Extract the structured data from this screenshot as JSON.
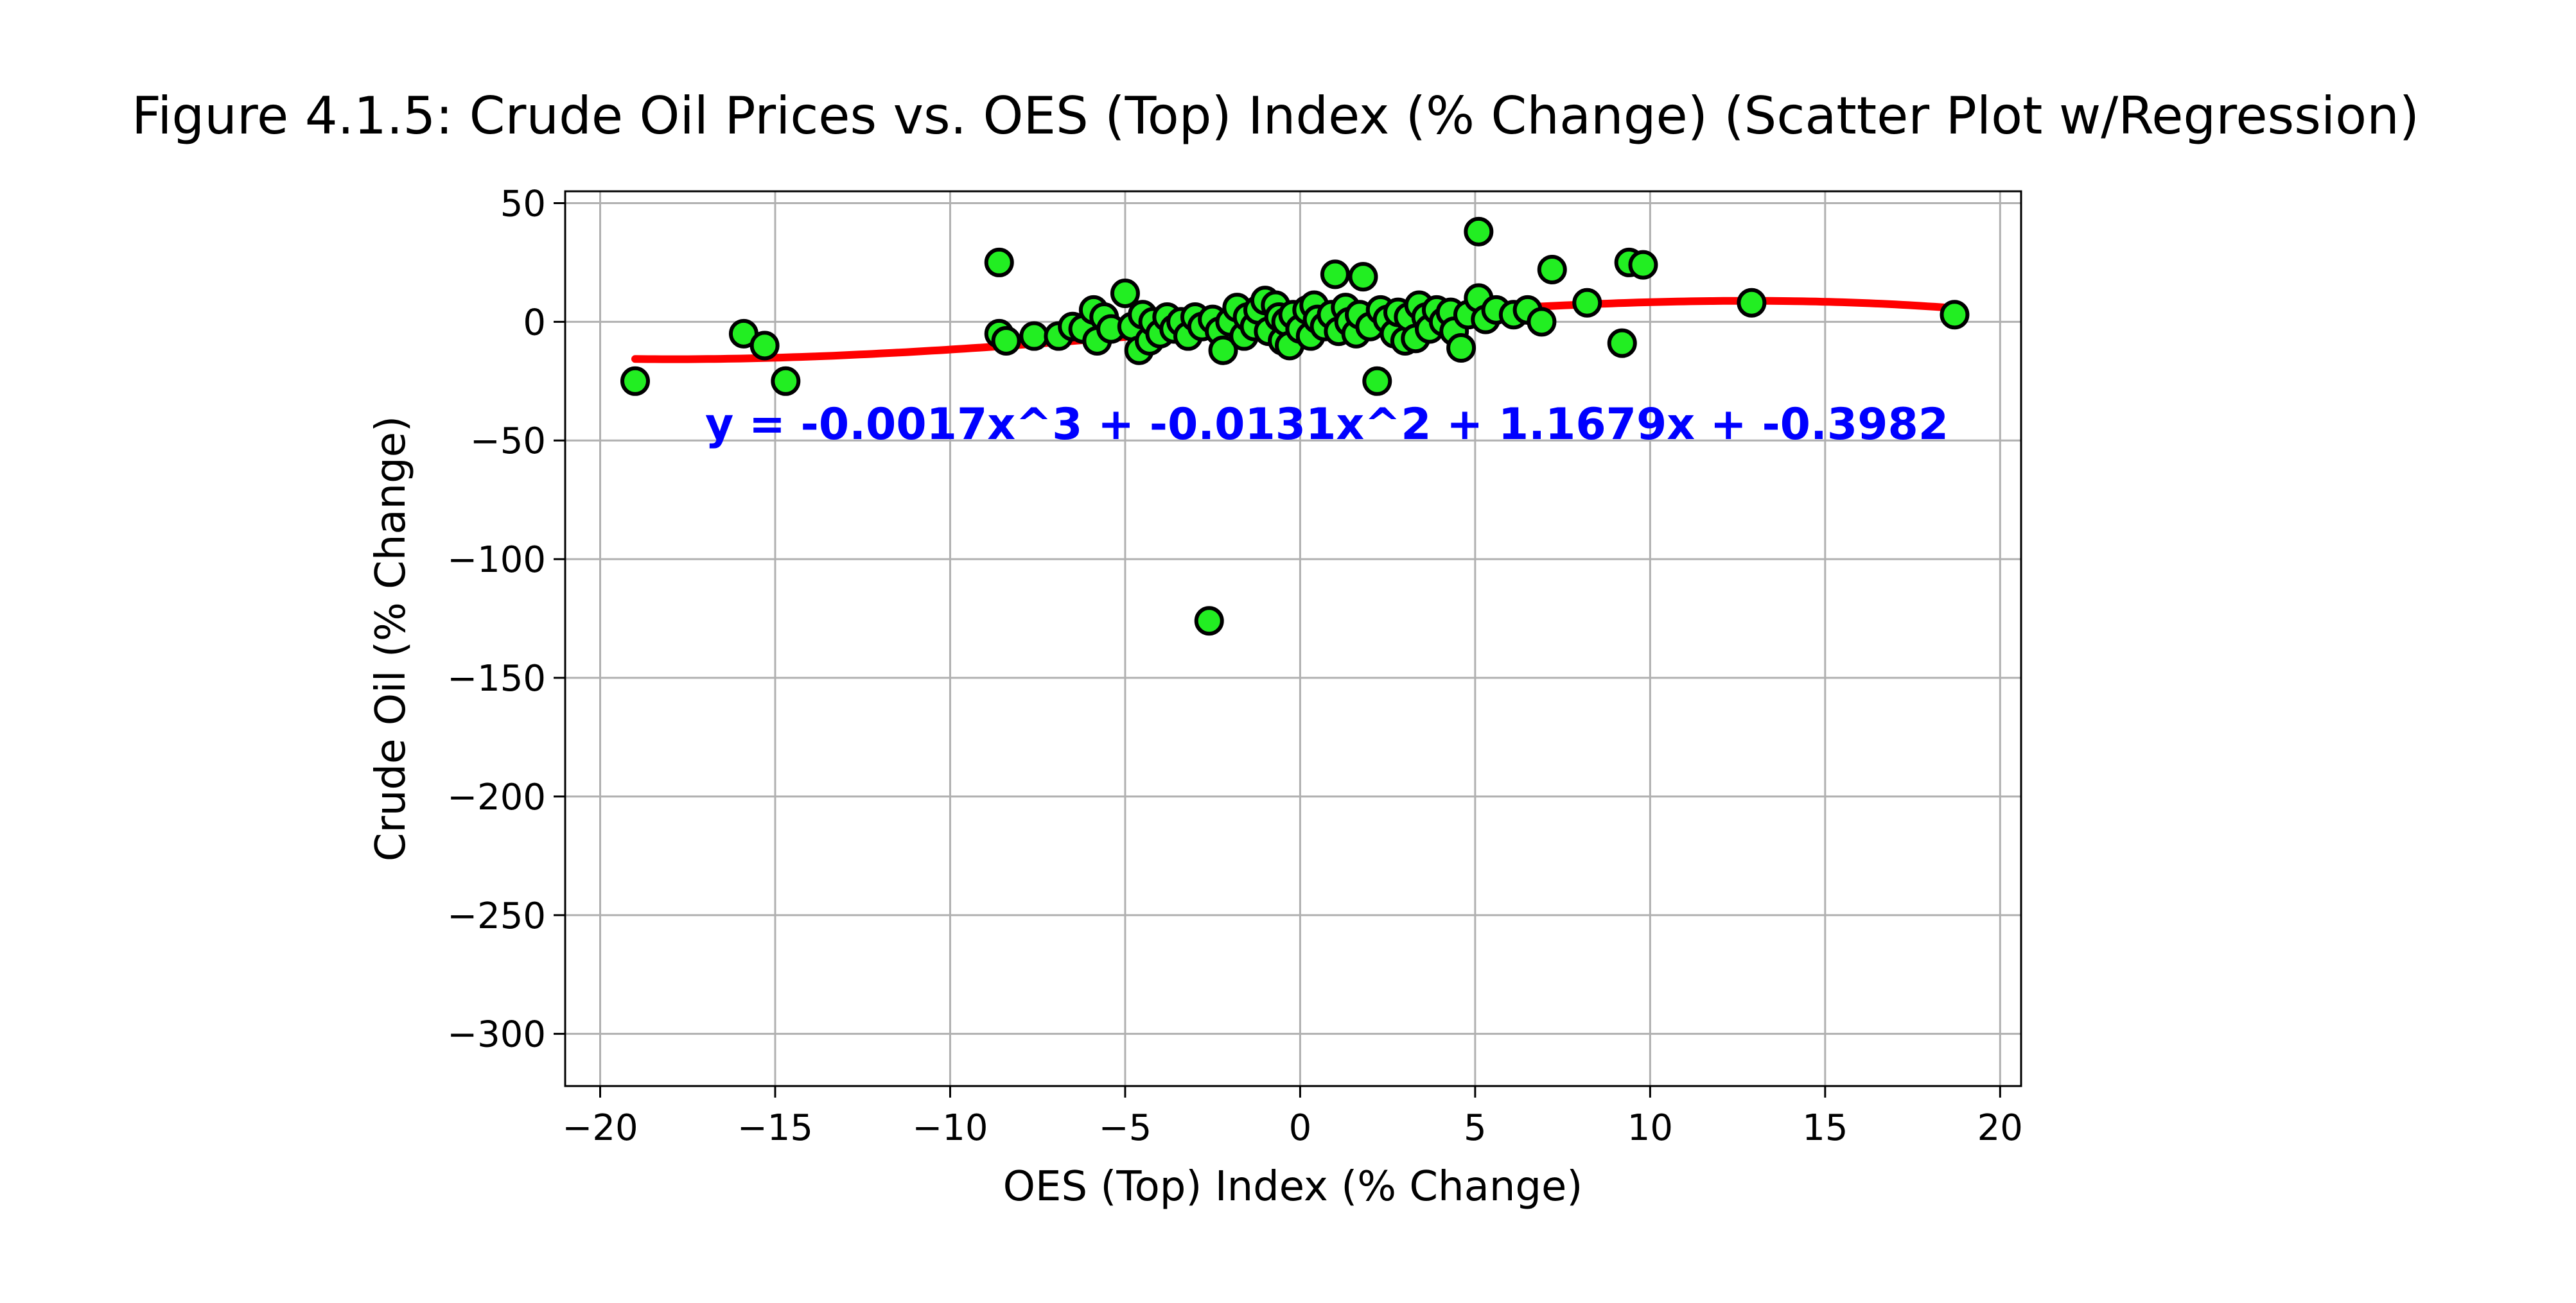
{
  "chart_data": {
    "type": "scatter",
    "title": "Figure 4.1.5: Crude Oil Prices vs. OES (Top) Index (% Change) (Scatter Plot w/Regression)",
    "xlabel": "OES (Top) Index (% Change)",
    "ylabel": "Crude Oil (% Change)",
    "xlim": [
      -21,
      20.6
    ],
    "ylim": [
      -322,
      55
    ],
    "xticks": [
      -20,
      -15,
      -10,
      -5,
      0,
      5,
      10,
      15,
      20
    ],
    "xtick_labels": [
      "−20",
      "−15",
      "−10",
      "−5",
      "0",
      "5",
      "10",
      "15",
      "20"
    ],
    "yticks": [
      50,
      0,
      -50,
      -100,
      -150,
      -200,
      -250,
      -300
    ],
    "ytick_labels": [
      "50",
      "0",
      "−50",
      "−100",
      "−150",
      "−200",
      "−250",
      "−300"
    ],
    "grid": true,
    "colors": {
      "points": "#22ee22",
      "point_edge": "#000000",
      "regression": "#ff0000",
      "equation": "#0000ff"
    },
    "regression": {
      "equation": "y = -0.0017x^3 + -0.0131x^2 + 1.1679x + -0.3982",
      "coefficients": [
        -0.0017,
        -0.0131,
        1.1679,
        -0.3982
      ],
      "x_range": [
        -19,
        18.7
      ]
    },
    "points": [
      [
        -19.0,
        -25
      ],
      [
        -15.9,
        -5
      ],
      [
        -15.3,
        -10
      ],
      [
        -14.7,
        -25
      ],
      [
        -8.6,
        25
      ],
      [
        -8.6,
        -5
      ],
      [
        -8.4,
        -8
      ],
      [
        -7.6,
        -6
      ],
      [
        -6.9,
        -6
      ],
      [
        -6.5,
        -2
      ],
      [
        -6.2,
        -3
      ],
      [
        -5.9,
        5
      ],
      [
        -5.8,
        -8
      ],
      [
        -5.6,
        2
      ],
      [
        -5.4,
        -3
      ],
      [
        -5.0,
        12
      ],
      [
        -4.8,
        -2
      ],
      [
        -4.6,
        -12
      ],
      [
        -4.5,
        3
      ],
      [
        -4.3,
        -8
      ],
      [
        -4.2,
        0
      ],
      [
        -4.0,
        -5
      ],
      [
        -3.8,
        2
      ],
      [
        -3.6,
        -3
      ],
      [
        -3.4,
        0
      ],
      [
        -3.2,
        -6
      ],
      [
        -3.0,
        2
      ],
      [
        -2.8,
        -2
      ],
      [
        -2.6,
        -126
      ],
      [
        -2.5,
        1
      ],
      [
        -2.3,
        -4
      ],
      [
        -2.2,
        -12
      ],
      [
        -2.0,
        0
      ],
      [
        -1.8,
        6
      ],
      [
        -1.6,
        -6
      ],
      [
        -1.5,
        2
      ],
      [
        -1.3,
        -2
      ],
      [
        -1.2,
        5
      ],
      [
        -1.0,
        9
      ],
      [
        -0.9,
        -4
      ],
      [
        -0.7,
        7
      ],
      [
        -0.6,
        2
      ],
      [
        -0.5,
        -8
      ],
      [
        -0.4,
        0
      ],
      [
        -0.3,
        -10
      ],
      [
        -0.2,
        3
      ],
      [
        0.0,
        -3
      ],
      [
        0.2,
        5
      ],
      [
        0.3,
        -6
      ],
      [
        0.4,
        7
      ],
      [
        0.5,
        1
      ],
      [
        0.7,
        -2
      ],
      [
        0.9,
        3
      ],
      [
        1.0,
        20
      ],
      [
        1.1,
        -4
      ],
      [
        1.3,
        6
      ],
      [
        1.4,
        0
      ],
      [
        1.6,
        -5
      ],
      [
        1.7,
        3
      ],
      [
        1.8,
        19
      ],
      [
        2.0,
        -2
      ],
      [
        2.2,
        -25
      ],
      [
        2.3,
        5
      ],
      [
        2.5,
        1
      ],
      [
        2.7,
        -5
      ],
      [
        2.8,
        4
      ],
      [
        3.0,
        -8
      ],
      [
        3.1,
        2
      ],
      [
        3.3,
        -7
      ],
      [
        3.4,
        7
      ],
      [
        3.6,
        2
      ],
      [
        3.7,
        -3
      ],
      [
        3.9,
        5
      ],
      [
        4.1,
        0
      ],
      [
        4.3,
        4
      ],
      [
        4.4,
        -4
      ],
      [
        4.6,
        -11
      ],
      [
        4.8,
        3
      ],
      [
        5.1,
        38
      ],
      [
        5.1,
        10
      ],
      [
        5.3,
        1
      ],
      [
        5.6,
        5
      ],
      [
        6.1,
        3
      ],
      [
        6.5,
        5
      ],
      [
        6.9,
        0
      ],
      [
        7.2,
        22
      ],
      [
        8.2,
        8
      ],
      [
        9.2,
        -9
      ],
      [
        9.4,
        25
      ],
      [
        9.8,
        24
      ],
      [
        12.9,
        8
      ],
      [
        18.7,
        3
      ]
    ]
  }
}
